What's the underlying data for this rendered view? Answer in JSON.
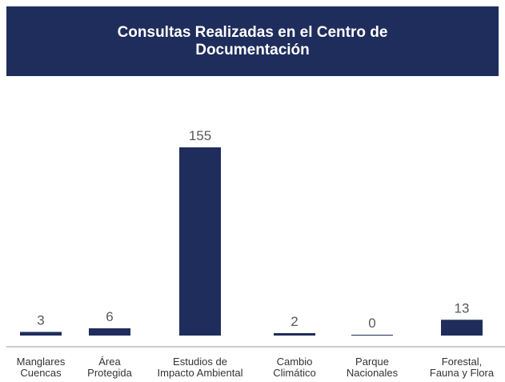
{
  "chart_data": {
    "type": "bar",
    "title": "Consultas Realizadas en el Centro de\nDocumentación",
    "categories": [
      "Manglares\nCuencas",
      "Área\nProtegida",
      "Estudios de\nImpacto Ambiental",
      "Cambio\nClimático",
      "Parque\nNacionales",
      "Forestal,\nFauna y Flora"
    ],
    "values": [
      3,
      6,
      155,
      2,
      0,
      13
    ],
    "color": "#1f2d5c"
  }
}
